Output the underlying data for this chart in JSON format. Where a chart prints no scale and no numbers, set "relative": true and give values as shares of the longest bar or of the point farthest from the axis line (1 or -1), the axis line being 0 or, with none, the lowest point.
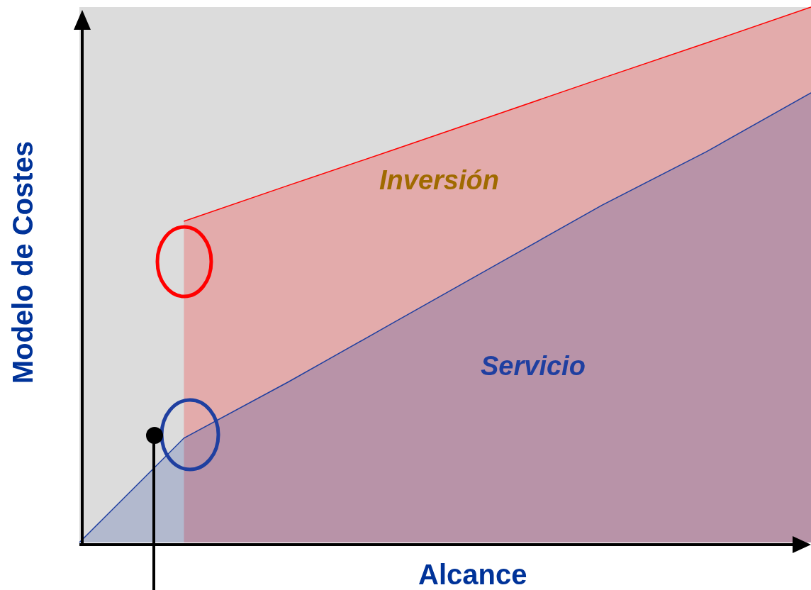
{
  "chart_data": {
    "type": "area",
    "xlabel": "Alcance",
    "ylabel": "Modelo de Costes",
    "relative": true,
    "categories": [
      null,
      null,
      null,
      null,
      null,
      null,
      null,
      null
    ],
    "series": [
      {
        "name": "Inversión",
        "color": "#ff0000",
        "values": [
          null,
          0.6,
          0.667,
          0.733,
          0.8,
          0.867,
          0.933,
          1.0
        ]
      },
      {
        "name": "Servicio",
        "color": "#1f3fa0",
        "values": [
          0,
          0.195,
          0.3,
          0.41,
          0.52,
          0.63,
          0.73,
          0.84
        ]
      }
    ]
  }
}
